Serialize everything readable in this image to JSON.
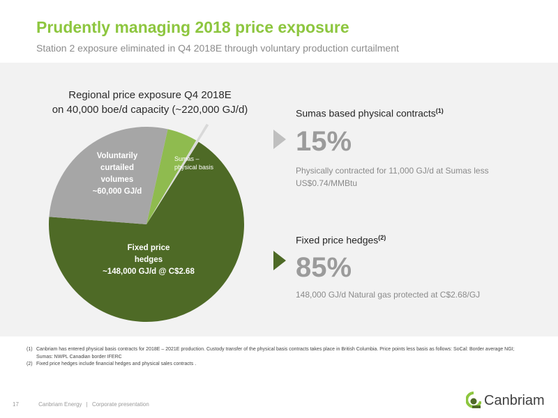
{
  "header": {
    "title": "Prudently managing 2018 price exposure",
    "subtitle": "Station 2 exposure eliminated in Q4 2018E through voluntary production curtailment"
  },
  "chart_title_lines": [
    "Regional price exposure Q4 2018E",
    "on 40,000 boe/d capacity (~220,000 GJ/d)"
  ],
  "chart_data": {
    "type": "pie",
    "title": "Regional price exposure Q4 2018E on 40,000 boe/d capacity (~220,000 GJ/d)",
    "series": [
      {
        "values": [
          148000,
          60000,
          11000,
          1000
        ]
      }
    ],
    "slices": [
      {
        "label_lines": [
          "Fixed price",
          "hedges",
          "~148,000 GJ/d @ C$2.68"
        ],
        "value": 148000,
        "color": "#4e6a26"
      },
      {
        "label_lines": [
          "Voluntarily",
          "curtailed",
          "volumes",
          "~60,000 GJ/d"
        ],
        "value": 60000,
        "color": "#a6a6a6"
      },
      {
        "label_lines": [
          "Sumas –",
          "physical basis"
        ],
        "value": 11000,
        "color": "#8fbb4f"
      },
      {
        "label_lines": [],
        "value": 1000,
        "color": "#d9d9d9",
        "exploded": true
      }
    ],
    "legend": "none"
  },
  "sections": {
    "sumas": {
      "heading": "Sumas based physical contracts",
      "note": "(1)",
      "percent": "15%",
      "desc_lines": [
        "Physically contracted for 11,000 GJ/d at Sumas less",
        "US$0.74/MMBtu"
      ],
      "arrow_color": "#bfbfbf"
    },
    "hedges": {
      "heading": "Fixed price hedges",
      "note": "(2)",
      "percent": "85%",
      "desc_lines": [
        "148,000 GJ/d Natural gas protected at C$2.68/GJ"
      ],
      "arrow_color": "#4e6a26"
    }
  },
  "footnotes": [
    {
      "num": "(1)",
      "lines": [
        "Canbriam has entered physical basis contracts for 2018E – 2021E production.  Custody transfer of the physical basis contracts takes place in British Columbia.   Price points less basis as follows: SoCal: Border average NGI;",
        "Sumas: NWPL Canadian border IFERC"
      ]
    },
    {
      "num": "(2)",
      "lines": [
        "Fixed price hedges include financial hedges and physical sales contracts ."
      ]
    }
  ],
  "footer": {
    "page_number": "17",
    "company": "Canbriam Energy",
    "separator": "|",
    "doc": "Corporate presentation",
    "logo_text": "Canbriam"
  },
  "colors": {
    "title": "#8dc63f",
    "dark_green": "#4e6a26",
    "light_green": "#8fbb4f",
    "grey": "#a6a6a6"
  }
}
